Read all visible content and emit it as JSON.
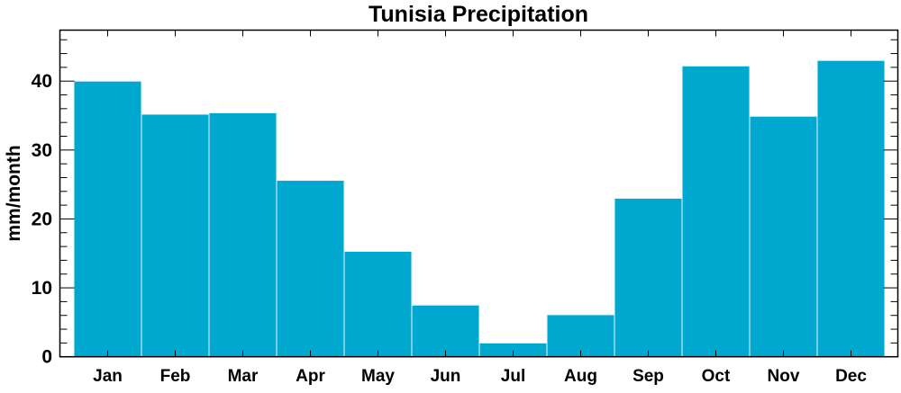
{
  "chart_data": {
    "type": "bar",
    "title": "Tunisia Precipitation",
    "xlabel": "",
    "ylabel": "mm/month",
    "categories": [
      "Jan",
      "Feb",
      "Mar",
      "Apr",
      "May",
      "Jun",
      "Jul",
      "Aug",
      "Sep",
      "Oct",
      "Nov",
      "Dec"
    ],
    "values": [
      40.0,
      35.2,
      35.4,
      25.6,
      15.3,
      7.5,
      2.0,
      6.1,
      23.0,
      42.2,
      34.9,
      43.0
    ],
    "ylim": [
      0,
      47.4
    ],
    "yticks": [
      0,
      10,
      20,
      30,
      40
    ],
    "yminor_step": 2,
    "grid": false,
    "bar_color": "#00a8d0"
  }
}
